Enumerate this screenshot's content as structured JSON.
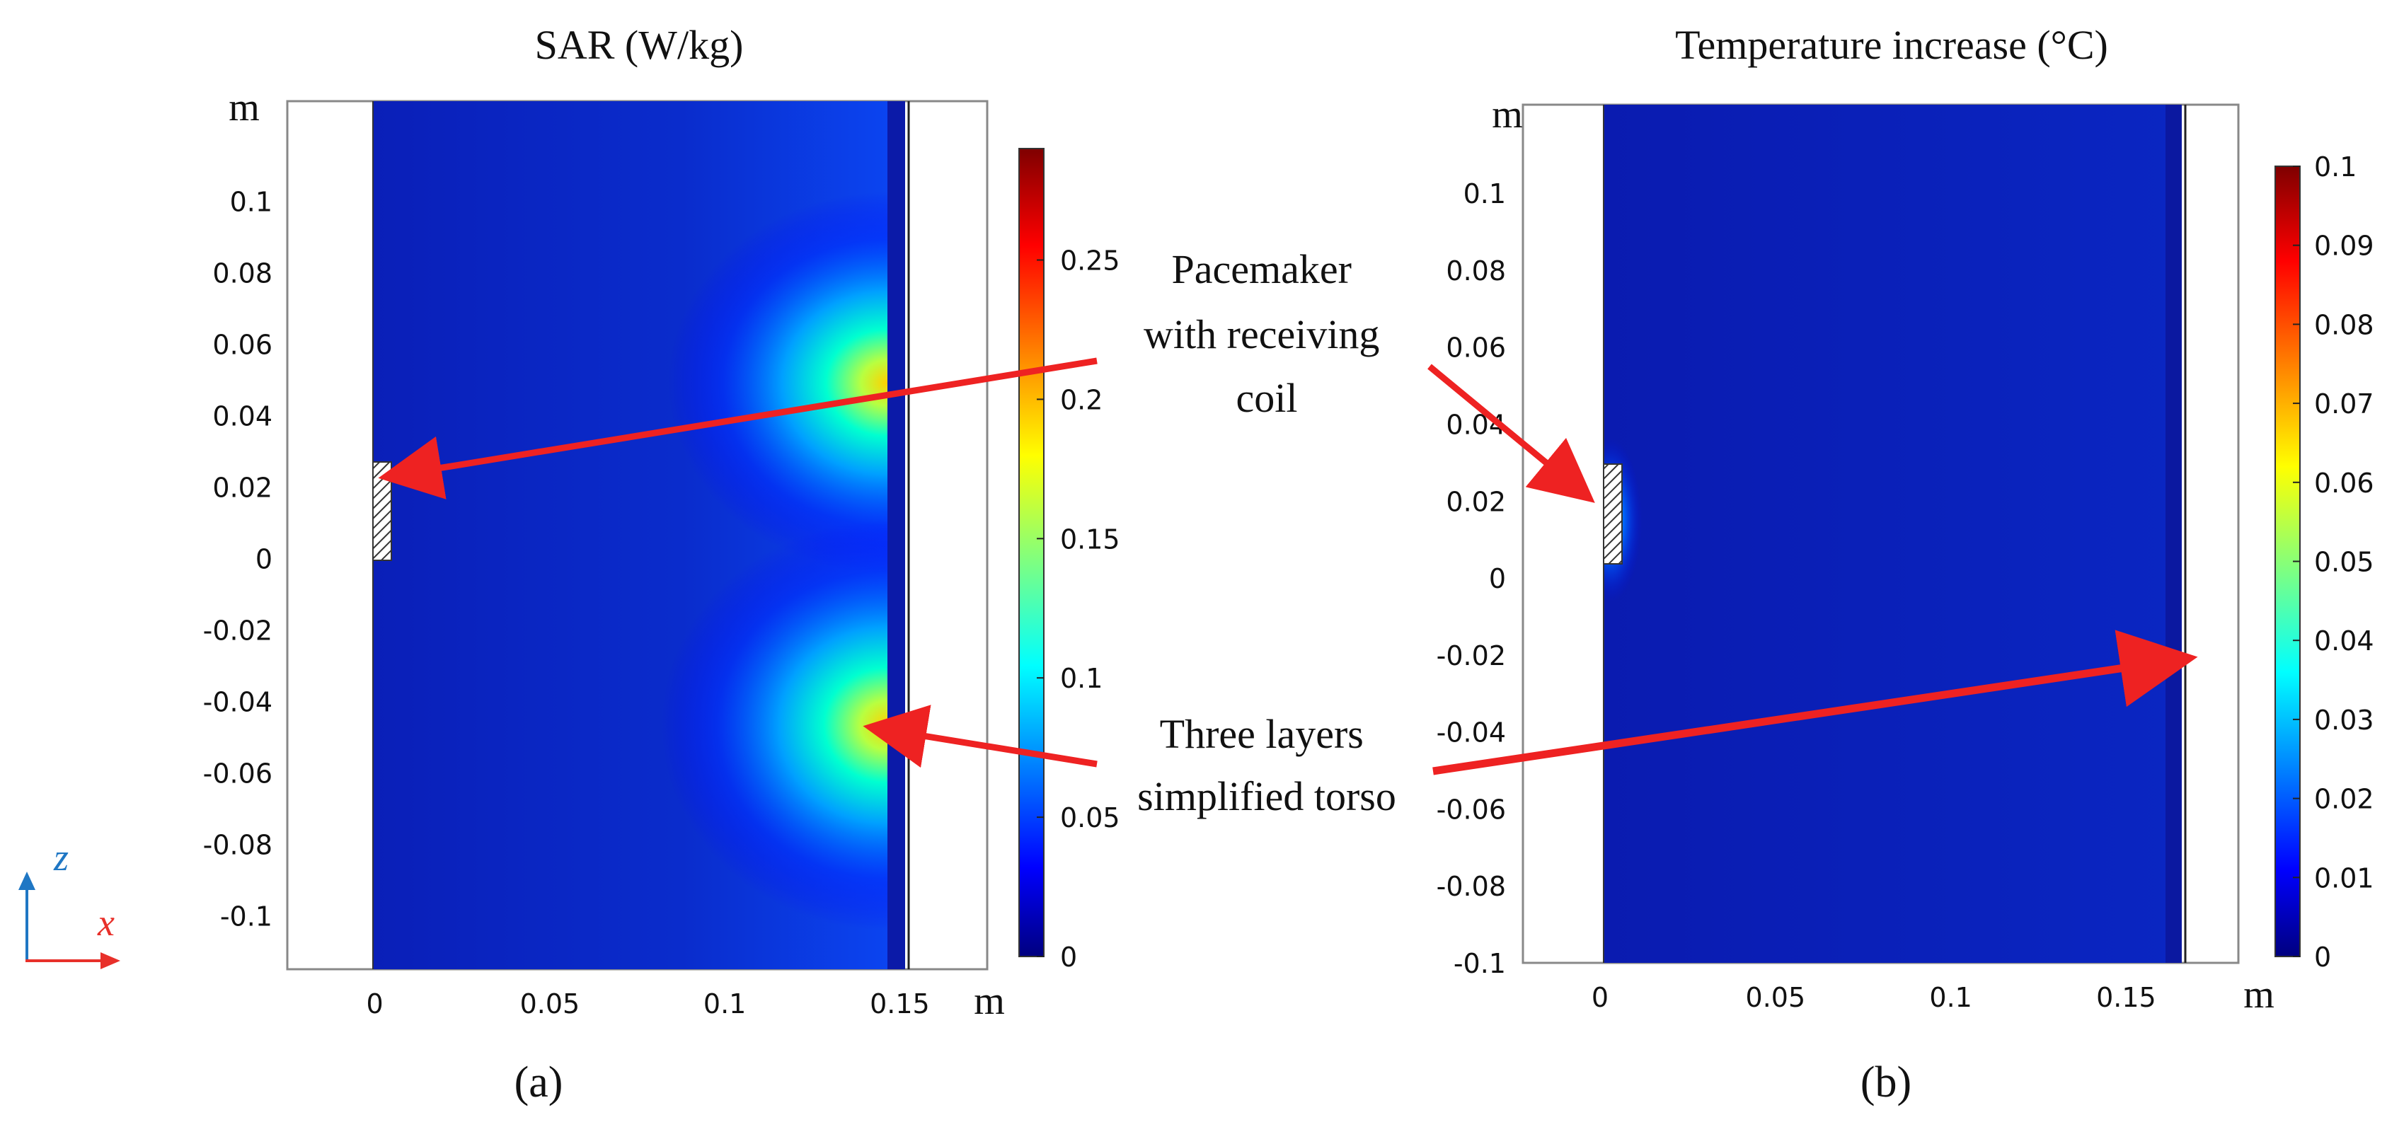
{
  "chart_data": [
    {
      "type": "heatmap",
      "title": "SAR (W/kg)",
      "panel_label": "(a)",
      "unit_x": "m",
      "unit_y": "m",
      "x_ticks": [
        "0",
        "0.05",
        "0.1",
        "0.15"
      ],
      "x_tick_values": [
        0,
        0.05,
        0.1,
        0.15
      ],
      "y_ticks": [
        "0.1",
        "0.08",
        "0.06",
        "0.04",
        "0.02",
        "0",
        "-0.02",
        "-0.04",
        "-0.06",
        "-0.08",
        "-0.1"
      ],
      "y_tick_values": [
        0.1,
        0.08,
        0.06,
        0.04,
        0.02,
        0,
        -0.02,
        -0.04,
        -0.06,
        -0.08,
        -0.1
      ],
      "xlim": [
        -0.025,
        0.175
      ],
      "ylim": [
        -0.115,
        0.128
      ],
      "colorbar": {
        "ticks": [
          "0.25",
          "0.2",
          "0.15",
          "0.1",
          "0.05",
          "0"
        ],
        "tick_values": [
          0.25,
          0.2,
          0.15,
          0.1,
          0.05,
          0
        ],
        "min": 0,
        "max": 0.29
      },
      "field_hotspots": [
        {
          "x": 0.145,
          "y": 0.05,
          "value": 0.22
        },
        {
          "x": 0.145,
          "y": -0.046,
          "value": 0.22
        }
      ],
      "torso_x_range": [
        0,
        0.15
      ],
      "pacemaker": {
        "x_range": [
          0,
          0.005
        ],
        "z_range": [
          0,
          0.028
        ]
      }
    },
    {
      "type": "heatmap",
      "title": "Temperature increase (°C)",
      "panel_label": "(b)",
      "unit_x": "m",
      "unit_y": "m",
      "x_ticks": [
        "0",
        "0.05",
        "0.1",
        "0.15"
      ],
      "x_tick_values": [
        0,
        0.05,
        0.1,
        0.15
      ],
      "y_ticks": [
        "0.1",
        "0.08",
        "0.06",
        "0.04",
        "0.02",
        "0",
        "-0.02",
        "-0.04",
        "-0.06",
        "-0.08",
        "-0.1"
      ],
      "y_tick_values": [
        0.1,
        0.08,
        0.06,
        0.04,
        0.02,
        0,
        -0.02,
        -0.04,
        -0.06,
        -0.08,
        -0.1
      ],
      "xlim": [
        -0.022,
        0.182
      ],
      "ylim": [
        -0.1,
        0.123
      ],
      "colorbar": {
        "ticks": [
          "0.1",
          "0.09",
          "0.08",
          "0.07",
          "0.06",
          "0.05",
          "0.04",
          "0.03",
          "0.02",
          "0.01",
          "0"
        ],
        "tick_values": [
          0.1,
          0.09,
          0.08,
          0.07,
          0.06,
          0.05,
          0.04,
          0.03,
          0.02,
          0.01,
          0
        ],
        "min": 0,
        "max": 0.1
      },
      "torso_x_range": [
        -0.006,
        0.156
      ],
      "pacemaker": {
        "x_range": [
          -0.006,
          -0.001
        ],
        "z_range": [
          0,
          0.028
        ]
      }
    }
  ],
  "annotations": {
    "pacemaker_label": [
      "Pacemaker",
      "with receiving",
      "coil"
    ],
    "torso_label": [
      "Three layers",
      "simplified torso"
    ]
  },
  "axes_glyph": {
    "z_label": "z",
    "x_label": "x",
    "z_color": "#1f77c4",
    "x_color": "#e8302a"
  },
  "colors": {
    "arrow": "#ee2222",
    "field_low": "#0a1fb8",
    "field_high": "#ff2a00"
  }
}
